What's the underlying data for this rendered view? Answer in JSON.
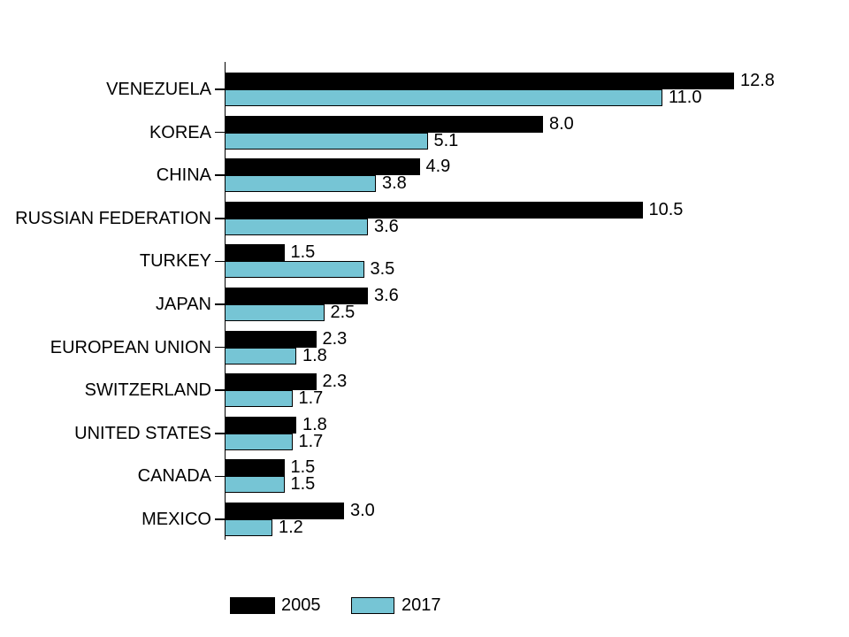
{
  "page": {
    "background": "#ffffff"
  },
  "chart_data": {
    "type": "bar",
    "orientation": "horizontal",
    "title": "",
    "xlabel": "",
    "ylabel": "",
    "grid": false,
    "legend_position": "bottom",
    "xlim": [
      0,
      12.8
    ],
    "value_labels": "shown, one decimal",
    "categories": [
      "VENEZUELA",
      "KOREA",
      "CHINA",
      "RUSSIAN FEDERATION",
      "TURKEY",
      "JAPAN",
      "EUROPEAN UNION",
      "SWITZERLAND",
      "UNITED STATES",
      "CANADA",
      "MEXICO"
    ],
    "series": [
      {
        "name": "2005",
        "color": "#000000",
        "border_color": "#000000",
        "values": [
          12.8,
          8.0,
          4.9,
          10.5,
          1.5,
          3.6,
          2.3,
          2.3,
          1.8,
          1.5,
          3.0
        ]
      },
      {
        "name": "2017",
        "color": "#76C5D5",
        "border_color": "#000000",
        "values": [
          11.0,
          5.1,
          3.8,
          3.6,
          3.5,
          2.5,
          1.8,
          1.7,
          1.7,
          1.5,
          1.2
        ]
      }
    ]
  }
}
